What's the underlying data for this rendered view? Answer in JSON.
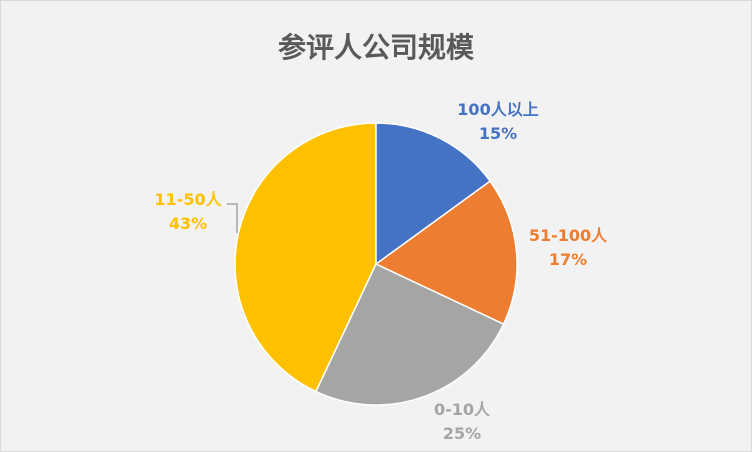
{
  "chart_data": {
    "type": "pie",
    "title": "参评人公司规模",
    "start": "top, clockwise",
    "legend": "none",
    "slices": [
      {
        "label": "100人以上",
        "value": 15,
        "pct": "15%",
        "color": "#4472C4"
      },
      {
        "label": "51-100人",
        "value": 17,
        "pct": "17%",
        "color": "#ED7D31"
      },
      {
        "label": "0-10人",
        "value": 25,
        "pct": "25%",
        "color": "#A5A5A5"
      },
      {
        "label": "11-50人",
        "value": 43,
        "pct": "43%",
        "color": "#FFC000"
      }
    ]
  }
}
